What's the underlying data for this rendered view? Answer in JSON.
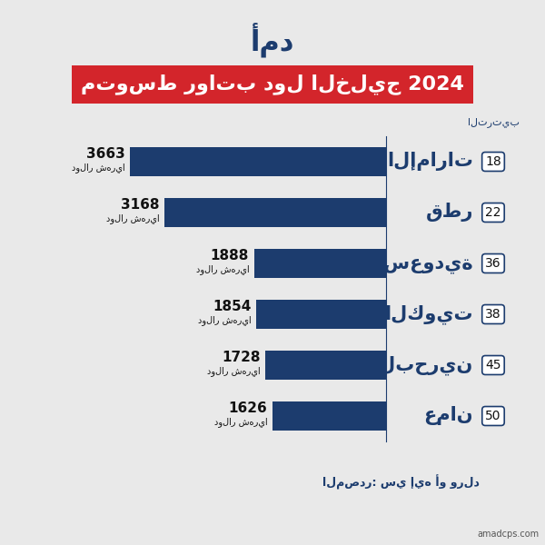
{
  "chart_data": {
    "type": "bar",
    "orientation": "horizontal",
    "logo": "أمد",
    "title": "متوسط رواتب دول الخليج 2024",
    "rank_header": "الترتيب",
    "categories": [
      "الإمارات",
      "قطر",
      "السعودية",
      "الكويت",
      "البحرين",
      "عمان"
    ],
    "ranks": [
      18,
      22,
      36,
      38,
      45,
      50
    ],
    "values": [
      3663,
      3168,
      1888,
      1854,
      1728,
      1626
    ],
    "unit_label": "دولار شهريا",
    "xlim": [
      0,
      4200
    ],
    "color": "#1c3c6e",
    "data_labels": true,
    "tick_labels": false,
    "grid": false,
    "source": "المصدر: سي إيه أو ورلد",
    "watermark": "amadcps.com"
  }
}
